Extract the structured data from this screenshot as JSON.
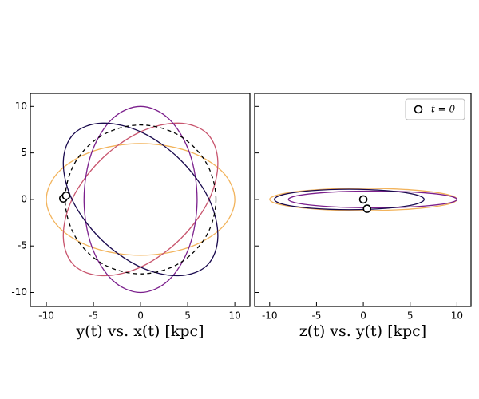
{
  "chart_data": [
    {
      "type": "line",
      "xlabel": "y(t) vs. x(t) [kpc]",
      "xlim": [
        -11.7,
        11.6
      ],
      "ylim": [
        -11.5,
        11.4
      ],
      "xticks": [
        -10,
        -5,
        0,
        5,
        10
      ],
      "yticks": [
        -10,
        -5,
        0,
        5,
        10
      ],
      "show_ytick_labels": true,
      "series": [
        {
          "color": "#f2b35b",
          "dashed": false,
          "x": [
            10,
            8.66,
            5,
            0,
            -5,
            -8.66,
            -10,
            -8.66,
            -5,
            0,
            5,
            8.66
          ],
          "y": [
            0,
            3,
            5.2,
            6,
            5.2,
            3,
            0,
            -3,
            -5.2,
            -6,
            -5.2,
            -3
          ]
        },
        {
          "color": "#c8556e",
          "dashed": false,
          "x": [
            7.07,
            4.0,
            -0.14,
            -4.24,
            -7.21,
            -8.2,
            -7.07,
            -4.0,
            0.14,
            4.24,
            7.21,
            8.2
          ],
          "y": [
            7.07,
            8.2,
            7.21,
            4.24,
            0.14,
            -4.0,
            -7.07,
            -8.2,
            -7.21,
            -4.24,
            -0.14,
            4.0
          ]
        },
        {
          "color": "#7b1f8c",
          "dashed": false,
          "x": [
            0,
            -3,
            -5.2,
            -6,
            -5.2,
            -3,
            0,
            3,
            5.2,
            6,
            5.2,
            3
          ],
          "y": [
            10,
            8.66,
            5,
            0,
            -5,
            -8.66,
            -10,
            -8.66,
            -5,
            0,
            5,
            8.66
          ]
        },
        {
          "color": "#1a0a4e",
          "dashed": false,
          "x": [
            -7.07,
            -8.2,
            -7.21,
            -4.24,
            -0.14,
            4.0,
            7.07,
            8.2,
            7.21,
            4.24,
            0.14,
            -4.0
          ],
          "y": [
            7.07,
            4.0,
            -0.14,
            -4.24,
            -7.21,
            -8.2,
            -7.07,
            -4.0,
            0.14,
            4.24,
            7.21,
            8.2
          ]
        },
        {
          "color": "#000000",
          "dashed": true,
          "x": [
            8,
            6.93,
            4,
            0,
            -4,
            -6.93,
            -8,
            -6.93,
            -4,
            0,
            4,
            6.93
          ],
          "y": [
            0,
            4,
            6.93,
            8,
            6.93,
            4,
            0,
            -4,
            -6.93,
            -8,
            -6.93,
            -4
          ]
        }
      ],
      "markers": {
        "x": [
          -8.2,
          -7.9
        ],
        "y": [
          0.1,
          0.4
        ]
      }
    },
    {
      "type": "line",
      "xlabel": "z(t) vs. y(t) [kpc]",
      "xlim": [
        -11.6,
        11.5
      ],
      "ylim": [
        -11.5,
        11.4
      ],
      "xticks": [
        -10,
        -5,
        0,
        5,
        10
      ],
      "yticks": [
        -10,
        -5,
        0,
        5,
        10
      ],
      "show_ytick_labels": false,
      "legend": "upper right",
      "series": [
        {
          "color": "#f2b35b",
          "dashed": false,
          "x": [
            10,
            8.66,
            5,
            0,
            -5,
            -8.66,
            -10,
            -8.66,
            -5,
            0,
            5,
            8.66
          ],
          "y": [
            0,
            0.6,
            1.04,
            1.2,
            1.04,
            0.6,
            0,
            -0.6,
            -1.04,
            -1.2,
            -1.04,
            -0.6
          ]
        },
        {
          "color": "#7b1f8c",
          "dashed": false,
          "x": [
            10,
            8.79,
            5.5,
            1,
            -3.5,
            -6.79,
            -8,
            -6.79,
            -3.5,
            1,
            5.5,
            8.79
          ],
          "y": [
            0,
            0.45,
            0.78,
            0.9,
            0.78,
            0.45,
            0,
            -0.45,
            -0.78,
            -0.9,
            -0.78,
            -0.45
          ]
        },
        {
          "color": "#1a0a4e",
          "dashed": false,
          "x": [
            6.5,
            5.43,
            2.5,
            -1.5,
            -5.5,
            -8.43,
            -9.5,
            -8.43,
            -5.5,
            -1.5,
            2.5,
            5.43
          ],
          "y": [
            0,
            0.55,
            0.95,
            1.1,
            0.95,
            0.55,
            0,
            -0.55,
            -0.95,
            -1.1,
            -0.95,
            -0.55
          ]
        }
      ],
      "markers": {
        "name": "t = 0",
        "x": [
          0,
          0.4
        ],
        "y": [
          0,
          -1
        ]
      }
    }
  ]
}
